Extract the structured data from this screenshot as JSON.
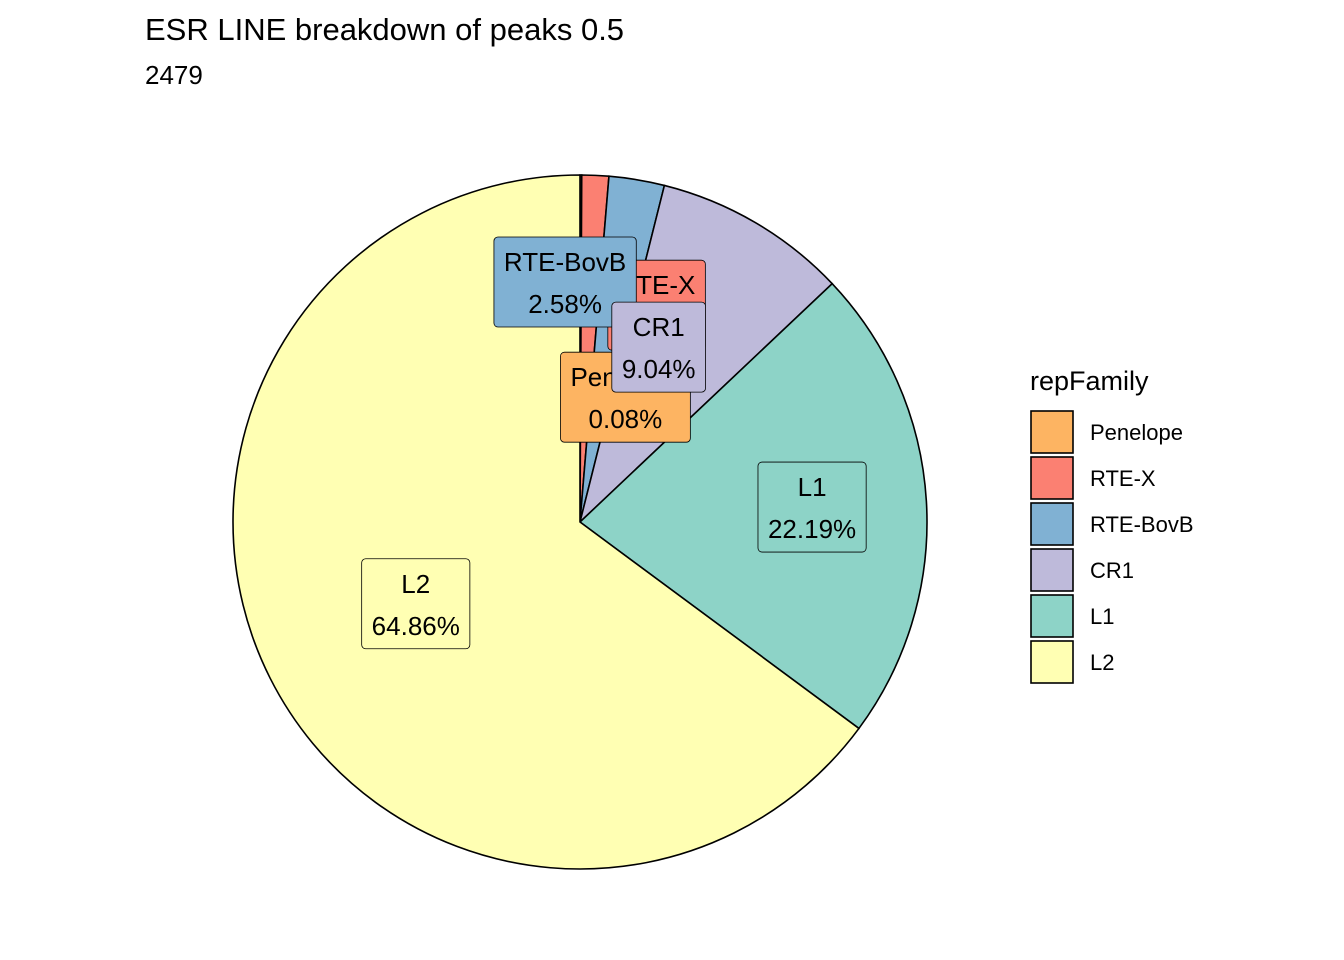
{
  "chart_data": {
    "type": "pie",
    "title": "ESR LINE breakdown of peaks 0.5",
    "subtitle": "2479",
    "legend_title": "repFamily",
    "legend_position": "right",
    "slices": [
      {
        "name": "Penelope",
        "value": 0.08,
        "label_pct": "0.08%",
        "color": "#FDB462"
      },
      {
        "name": "RTE-X",
        "value": 1.25,
        "label_pct": "1.25%",
        "color": "#FB8072"
      },
      {
        "name": "RTE-BovB",
        "value": 2.58,
        "label_pct": "2.58%",
        "color": "#80B1D3"
      },
      {
        "name": "CR1",
        "value": 9.04,
        "label_pct": "9.04%",
        "color": "#BEBADA"
      },
      {
        "name": "L1",
        "value": 22.19,
        "label_pct": "22.19%",
        "color": "#8DD3C7"
      },
      {
        "name": "L2",
        "value": 64.86,
        "label_pct": "64.86%",
        "color": "#FFFFB3"
      }
    ]
  }
}
